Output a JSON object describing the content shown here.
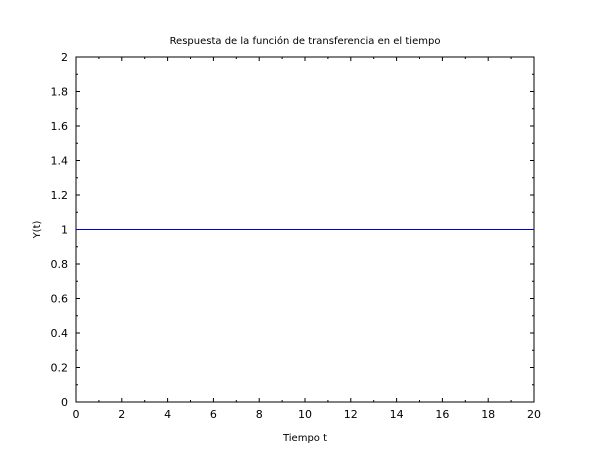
{
  "chart_data": {
    "type": "line",
    "title": "Respuesta de la función de transferencia en el tiempo",
    "xlabel": "Tiempo t",
    "ylabel": "Y(t)",
    "xlim": [
      0,
      20
    ],
    "ylim": [
      0,
      2
    ],
    "x_ticks": [
      0,
      2,
      4,
      6,
      8,
      10,
      12,
      14,
      16,
      18,
      20
    ],
    "y_ticks": [
      0,
      0.2,
      0.4,
      0.6,
      0.8,
      1,
      1.2,
      1.4,
      1.6,
      1.8,
      2
    ],
    "x_tick_labels": [
      "0",
      "2",
      "4",
      "6",
      "8",
      "10",
      "12",
      "14",
      "16",
      "18",
      "20"
    ],
    "y_tick_labels": [
      "0",
      "0.2",
      "0.4",
      "0.6",
      "0.8",
      "1",
      "1.2",
      "1.4",
      "1.6",
      "1.8",
      "2"
    ],
    "grid": false,
    "series": [
      {
        "color": "#0000cc",
        "x": [
          0,
          20
        ],
        "y": [
          1,
          1
        ]
      }
    ]
  }
}
